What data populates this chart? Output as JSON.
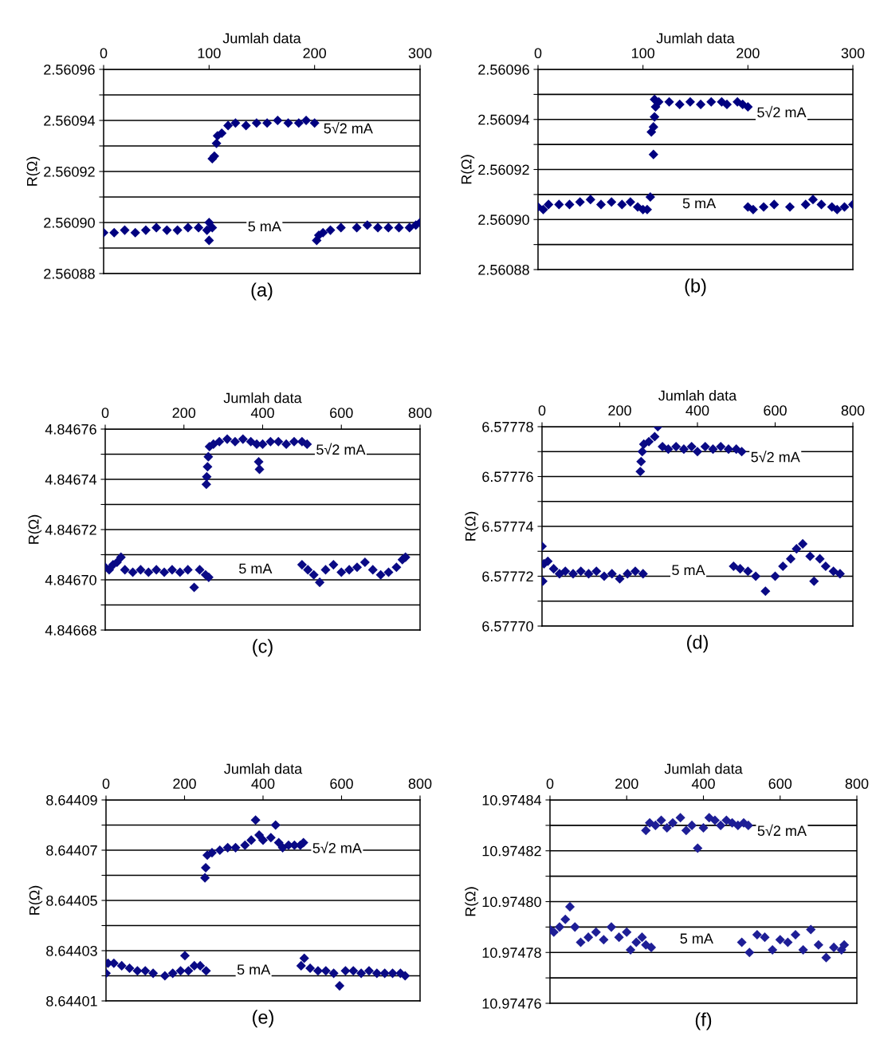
{
  "chart_data": [
    {
      "type": "scatter",
      "title": "(a)",
      "xlabel": "Jumlah data",
      "ylabel": "R(Ω)",
      "xlim": [
        0,
        300
      ],
      "xticks": [
        0,
        100,
        200,
        300
      ],
      "ylim": [
        2.56088,
        2.56096
      ],
      "yticks": [
        {
          "value": 2.56088,
          "label": "2.56088"
        },
        {
          "value": 2.56089,
          "label": null
        },
        {
          "value": 2.5609,
          "label": "2.56090"
        },
        {
          "value": 2.56091,
          "label": null
        },
        {
          "value": 2.56092,
          "label": "2.56092"
        },
        {
          "value": 2.56093,
          "label": null
        },
        {
          "value": 2.56094,
          "label": "2.56094"
        },
        {
          "value": 2.56095,
          "label": null
        },
        {
          "value": 2.56096,
          "label": "2.56096"
        }
      ],
      "grid": "y",
      "marker": "diamond",
      "series": [
        {
          "name": "5√2 mA",
          "color": "#000080",
          "x": [
            103,
            105,
            107,
            108,
            112,
            118,
            125,
            135,
            145,
            155,
            165,
            175,
            185,
            192,
            200
          ],
          "values": [
            2.560925,
            2.560926,
            2.560931,
            2.560934,
            2.560935,
            2.560938,
            2.560939,
            2.560938,
            2.560939,
            2.560939,
            2.56094,
            2.560939,
            2.560939,
            2.56094,
            2.560939
          ]
        },
        {
          "name": "5 mA",
          "color": "#000080",
          "x": [
            0,
            10,
            20,
            30,
            40,
            50,
            60,
            70,
            80,
            90,
            98,
            100,
            100,
            103,
            202,
            204,
            208,
            215,
            225,
            240,
            250,
            260,
            270,
            280,
            290,
            296,
            300
          ],
          "values": [
            2.560896,
            2.560896,
            2.560897,
            2.560896,
            2.560897,
            2.560898,
            2.560897,
            2.560897,
            2.560898,
            2.560898,
            2.560897,
            2.5609,
            2.560893,
            2.560898,
            2.560893,
            2.560895,
            2.560896,
            2.560897,
            2.560898,
            2.560898,
            2.560899,
            2.560898,
            2.560898,
            2.560898,
            2.560898,
            2.560899,
            2.5609
          ]
        }
      ]
    },
    {
      "type": "scatter",
      "title": "(b)",
      "xlabel": "Jumlah data",
      "ylabel": "R(Ω)",
      "xlim": [
        0,
        300
      ],
      "xticks": [
        0,
        100,
        200,
        300
      ],
      "ylim": [
        2.56088,
        2.56096
      ],
      "yticks": [
        {
          "value": 2.56088,
          "label": "2.56088"
        },
        {
          "value": 2.56089,
          "label": null
        },
        {
          "value": 2.5609,
          "label": "2.56090"
        },
        {
          "value": 2.56091,
          "label": null
        },
        {
          "value": 2.56092,
          "label": "2.56092"
        },
        {
          "value": 2.56093,
          "label": null
        },
        {
          "value": 2.56094,
          "label": "2.56094"
        },
        {
          "value": 2.56095,
          "label": null
        },
        {
          "value": 2.56096,
          "label": "2.56096"
        }
      ],
      "grid": "y",
      "marker": "diamond",
      "series": [
        {
          "name": "5√2 mA",
          "color": "#000080",
          "x": [
            110,
            108,
            110,
            111,
            112,
            111,
            115,
            125,
            135,
            145,
            155,
            165,
            175,
            180,
            190,
            195,
            200
          ],
          "values": [
            2.560926,
            2.560935,
            2.560937,
            2.560941,
            2.560945,
            2.560948,
            2.560947,
            2.560947,
            2.560946,
            2.560947,
            2.560946,
            2.560947,
            2.560947,
            2.560946,
            2.560947,
            2.560946,
            2.560945
          ]
        },
        {
          "name": "5 mA",
          "color": "#000080",
          "x": [
            0,
            5,
            10,
            20,
            30,
            40,
            50,
            60,
            70,
            80,
            88,
            95,
            100,
            104,
            107,
            200,
            205,
            215,
            225,
            240,
            255,
            262,
            270,
            280,
            285,
            292,
            300
          ],
          "values": [
            2.560905,
            2.560904,
            2.560906,
            2.560906,
            2.560906,
            2.560907,
            2.560908,
            2.560906,
            2.560907,
            2.560906,
            2.560907,
            2.560905,
            2.560904,
            2.560904,
            2.560909,
            2.560905,
            2.560904,
            2.560905,
            2.560906,
            2.560905,
            2.560906,
            2.560908,
            2.560906,
            2.560905,
            2.560904,
            2.560905,
            2.560906
          ]
        }
      ]
    },
    {
      "type": "scatter",
      "title": "(c)",
      "xlabel": "Jumlah data",
      "ylabel": "R(Ω)",
      "xlim": [
        0,
        800
      ],
      "xticks": [
        0,
        200,
        400,
        600,
        800
      ],
      "ylim": [
        4.84668,
        4.84676
      ],
      "yticks": [
        {
          "value": 4.84668,
          "label": "4.84668"
        },
        {
          "value": 4.84669,
          "label": null
        },
        {
          "value": 4.8467,
          "label": "4.84670"
        },
        {
          "value": 4.84671,
          "label": null
        },
        {
          "value": 4.84672,
          "label": "4.84672"
        },
        {
          "value": 4.84673,
          "label": null
        },
        {
          "value": 4.84674,
          "label": "4.84674"
        },
        {
          "value": 4.84675,
          "label": null
        },
        {
          "value": 4.84676,
          "label": "4.84676"
        }
      ],
      "grid": "y",
      "marker": "diamond",
      "series": [
        {
          "name": "5√2 mA",
          "color": "#0a0a85",
          "x": [
            257,
            258,
            260,
            262,
            265,
            275,
            290,
            310,
            330,
            350,
            370,
            385,
            390,
            392,
            400,
            420,
            440,
            460,
            480,
            500,
            513
          ],
          "values": [
            4.846738,
            4.846741,
            4.846745,
            4.846749,
            4.846753,
            4.846754,
            4.846755,
            4.846756,
            4.846755,
            4.846756,
            4.846755,
            4.846754,
            4.846747,
            4.846744,
            4.846754,
            4.846755,
            4.846755,
            4.846754,
            4.846755,
            4.846755,
            4.846754
          ]
        },
        {
          "name": "5 mA",
          "color": "#0a0a85",
          "x": [
            0,
            10,
            20,
            30,
            40,
            50,
            70,
            90,
            110,
            130,
            150,
            170,
            190,
            210,
            226,
            240,
            255,
            263,
            500,
            515,
            530,
            545,
            560,
            580,
            600,
            620,
            640,
            660,
            680,
            700,
            720,
            740,
            755,
            763
          ],
          "values": [
            4.846705,
            4.846704,
            4.846706,
            4.846707,
            4.846709,
            4.846704,
            4.846703,
            4.846704,
            4.846703,
            4.846704,
            4.846703,
            4.846704,
            4.846703,
            4.846704,
            4.846697,
            4.846704,
            4.846702,
            4.846701,
            4.846706,
            4.846704,
            4.846702,
            4.846699,
            4.846704,
            4.846706,
            4.846703,
            4.846704,
            4.846705,
            4.846707,
            4.846704,
            4.846702,
            4.846703,
            4.846705,
            4.846708,
            4.846709
          ]
        }
      ]
    },
    {
      "type": "scatter",
      "title": "(d)",
      "xlabel": "Jumlah data",
      "ylabel": "R(Ω)",
      "xlim": [
        0,
        800
      ],
      "xticks": [
        0,
        200,
        400,
        600,
        800
      ],
      "ylim": [
        6.5777,
        6.57778
      ],
      "yticks": [
        {
          "value": 6.5777,
          "label": "6.57770"
        },
        {
          "value": 6.57771,
          "label": null
        },
        {
          "value": 6.57772,
          "label": "6.57772"
        },
        {
          "value": 6.57773,
          "label": null
        },
        {
          "value": 6.57774,
          "label": "6.57774"
        },
        {
          "value": 6.57775,
          "label": null
        },
        {
          "value": 6.57776,
          "label": "6.57776"
        },
        {
          "value": 6.57777,
          "label": null
        },
        {
          "value": 6.57778,
          "label": "6.57778"
        }
      ],
      "grid": "y",
      "marker": "diamond",
      "series": [
        {
          "name": "5√2 mA",
          "color": "#0a0a85",
          "x": [
            253,
            255,
            258,
            262,
            275,
            290,
            298,
            310,
            325,
            345,
            365,
            385,
            400,
            420,
            440,
            460,
            480,
            500,
            514
          ],
          "values": [
            6.577762,
            6.577766,
            6.57777,
            6.577773,
            6.577774,
            6.577776,
            6.57778,
            6.577772,
            6.577771,
            6.577772,
            6.577771,
            6.577772,
            6.57777,
            6.577772,
            6.577771,
            6.577772,
            6.577771,
            6.577771,
            6.57777
          ]
        },
        {
          "name": "5 mA",
          "color": "#0a0a85",
          "x": [
            0,
            2,
            5,
            15,
            30,
            45,
            60,
            80,
            100,
            120,
            140,
            160,
            180,
            200,
            220,
            240,
            260,
            493,
            510,
            530,
            550,
            575,
            600,
            620,
            640,
            655,
            671,
            690,
            700,
            715,
            730,
            750,
            767
          ],
          "values": [
            6.577732,
            6.577718,
            6.577725,
            6.577726,
            6.577723,
            6.577721,
            6.577722,
            6.577721,
            6.577722,
            6.577721,
            6.577722,
            6.57772,
            6.577721,
            6.577719,
            6.577721,
            6.577722,
            6.577721,
            6.577724,
            6.577723,
            6.577722,
            6.57772,
            6.577714,
            6.57772,
            6.577724,
            6.577727,
            6.577731,
            6.577733,
            6.577728,
            6.577718,
            6.577727,
            6.577724,
            6.577722,
            6.577721
          ]
        }
      ]
    },
    {
      "type": "scatter",
      "title": "(e)",
      "xlabel": "Jumlah data",
      "ylabel": "R(Ω)",
      "xlim": [
        0,
        800
      ],
      "xticks": [
        0,
        200,
        400,
        600,
        800
      ],
      "ylim": [
        8.64401,
        8.64409
      ],
      "yticks": [
        {
          "value": 8.64401,
          "label": "8.64401"
        },
        {
          "value": 8.64402,
          "label": null
        },
        {
          "value": 8.64403,
          "label": "8.64403"
        },
        {
          "value": 8.64404,
          "label": null
        },
        {
          "value": 8.64405,
          "label": "8.64405"
        },
        {
          "value": 8.64406,
          "label": null
        },
        {
          "value": 8.64407,
          "label": "8.64407"
        },
        {
          "value": 8.64408,
          "label": null
        },
        {
          "value": 8.64409,
          "label": "8.64409"
        }
      ],
      "grid": "y",
      "marker": "diamond",
      "series": [
        {
          "name": "5√2 mA",
          "color": "#0a0a85",
          "x": [
            252,
            254,
            258,
            270,
            290,
            310,
            330,
            354,
            370,
            381,
            390,
            400,
            420,
            432,
            440,
            450,
            465,
            480,
            495,
            503
          ],
          "values": [
            8.644059,
            8.644063,
            8.644068,
            8.644069,
            8.64407,
            8.644071,
            8.644071,
            8.644072,
            8.644074,
            8.644082,
            8.644076,
            8.644074,
            8.644075,
            8.64408,
            8.644073,
            8.644071,
            8.644072,
            8.644072,
            8.644072,
            8.644073
          ]
        },
        {
          "name": "5 mA",
          "color": "#0a0a85",
          "x": [
            0,
            5,
            20,
            40,
            60,
            80,
            100,
            120,
            150,
            170,
            190,
            201,
            210,
            225,
            240,
            255,
            497,
            505,
            520,
            540,
            560,
            580,
            595,
            610,
            630,
            650,
            670,
            690,
            710,
            730,
            750,
            762
          ],
          "values": [
            8.644021,
            8.644025,
            8.644025,
            8.644024,
            8.644023,
            8.644022,
            8.644022,
            8.644021,
            8.64402,
            8.644021,
            8.644022,
            8.644028,
            8.644022,
            8.644024,
            8.644024,
            8.644022,
            8.644024,
            8.644027,
            8.644023,
            8.644022,
            8.644022,
            8.644021,
            8.644016,
            8.644022,
            8.644022,
            8.644021,
            8.644022,
            8.644021,
            8.644021,
            8.644021,
            8.644021,
            8.64402
          ]
        }
      ]
    },
    {
      "type": "scatter",
      "title": "(f)",
      "xlabel": "Jumlah data",
      "ylabel": "R(Ω)",
      "xlim": [
        0,
        800
      ],
      "xticks": [
        0,
        200,
        400,
        600,
        800
      ],
      "ylim": [
        10.97476,
        10.97484
      ],
      "yticks": [
        {
          "value": 10.97476,
          "label": "10.97476"
        },
        {
          "value": 10.97477,
          "label": null
        },
        {
          "value": 10.97478,
          "label": "10.97478"
        },
        {
          "value": 10.97479,
          "label": null
        },
        {
          "value": 10.9748,
          "label": "10.97480"
        },
        {
          "value": 10.97481,
          "label": null
        },
        {
          "value": 10.97482,
          "label": "10.97482"
        },
        {
          "value": 10.97483,
          "label": null
        },
        {
          "value": 10.97484,
          "label": "10.97484"
        }
      ],
      "grid": "y",
      "marker": "diamond",
      "series": [
        {
          "name": "5√2 mA",
          "color": "#1e1e96",
          "x": [
            250,
            260,
            275,
            290,
            305,
            320,
            340,
            355,
            370,
            385,
            400,
            415,
            430,
            445,
            460,
            475,
            490,
            505,
            517
          ],
          "values": [
            10.974828,
            10.974831,
            10.97483,
            10.974832,
            10.974829,
            10.974831,
            10.974833,
            10.974828,
            10.97483,
            10.974821,
            10.974829,
            10.974833,
            10.974832,
            10.97483,
            10.974832,
            10.974831,
            10.97483,
            10.974831,
            10.97483
          ]
        },
        {
          "name": "5 mA",
          "color": "#1e1e96",
          "x": [
            0,
            10,
            25,
            40,
            52,
            65,
            80,
            100,
            120,
            140,
            160,
            180,
            200,
            210,
            225,
            240,
            250,
            264,
            500,
            520,
            540,
            560,
            580,
            600,
            620,
            640,
            660,
            680,
            700,
            720,
            740,
            760,
            767
          ],
          "values": [
            10.974789,
            10.974788,
            10.97479,
            10.974793,
            10.974798,
            10.97479,
            10.974784,
            10.974786,
            10.974788,
            10.974785,
            10.97479,
            10.974786,
            10.974788,
            10.974781,
            10.974784,
            10.974786,
            10.974783,
            10.974782,
            10.974784,
            10.97478,
            10.974787,
            10.974786,
            10.974781,
            10.974785,
            10.974784,
            10.974787,
            10.974781,
            10.974789,
            10.974783,
            10.974778,
            10.974782,
            10.974781,
            10.974783
          ]
        }
      ]
    }
  ]
}
